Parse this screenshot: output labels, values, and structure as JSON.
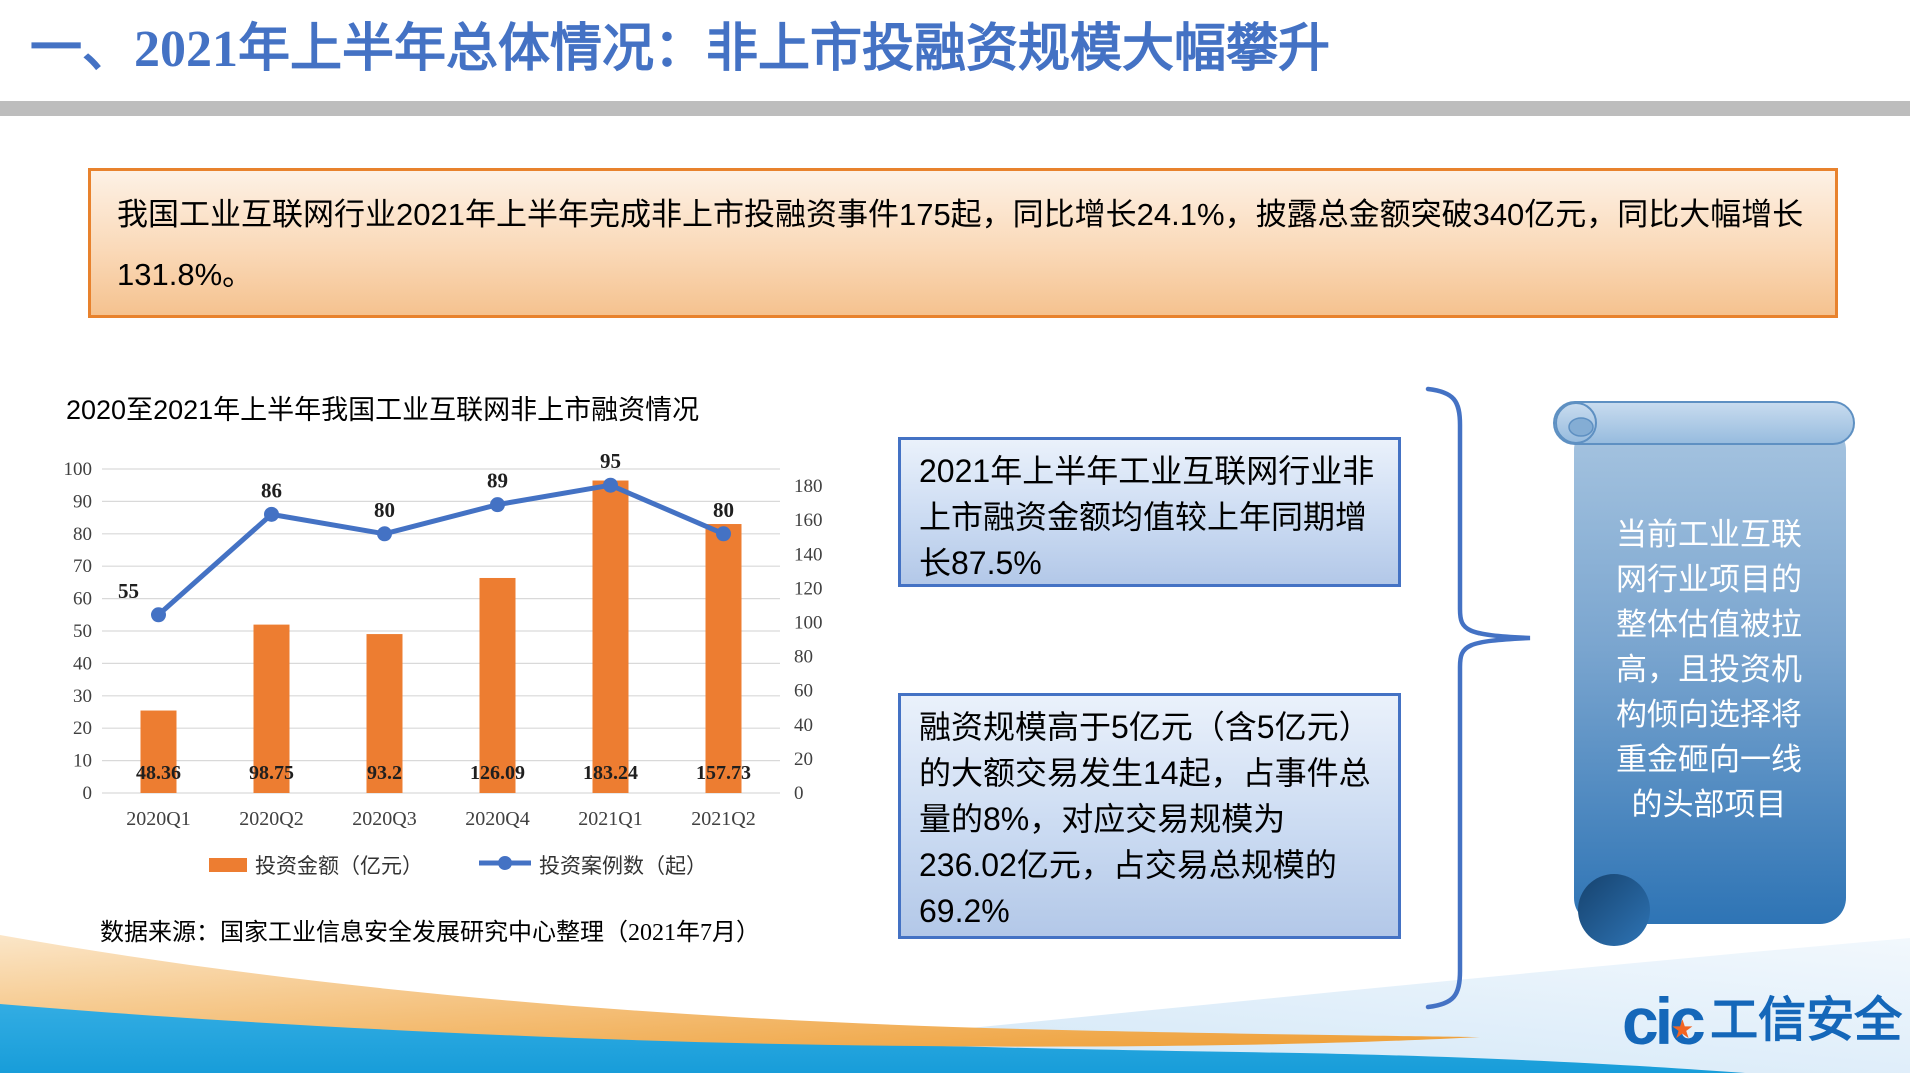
{
  "slide": {
    "title": {
      "prefix": "一、",
      "year": "2021",
      "rest": "年上半年总体情况：非上市投融资规模大幅攀升"
    },
    "summary_box": "我国工业互联网行业2021年上半年完成非上市投融资事件175起，同比增长24.1%，披露总金额突破340亿元，同比大幅增长131.8%。",
    "callout_1": "2021年上半年工业互联网行业非上市融资金额均值较上年同期增长87.5%",
    "callout_2": "融资规模高于5亿元（含5亿元）的大额交易发生14起，占事件总量的8%，对应交易规模为236.02亿元，占交易总规模的69.2%",
    "scroll_note": "当前工业互联\n网行业项目的\n整体估值被拉\n高，且投资机\n构倾向选择将\n重金砸向一线\n的头部项目",
    "source_note": "数据来源：国家工业信息安全发展研究中心整理（2021年7月）",
    "logo": {
      "mark": "cic",
      "star": "★",
      "text": "工信安全"
    }
  },
  "chart_data": {
    "type": "bar",
    "subtype": "combo-bar-line",
    "title": "2020至2021年上半年我国工业互联网非上市融资情况",
    "categories": [
      "2020Q1",
      "2020Q2",
      "2020Q3",
      "2020Q4",
      "2021Q1",
      "2021Q2"
    ],
    "series": [
      {
        "name": "投资金额（亿元）",
        "type": "bar",
        "axis": "right",
        "color": "#ED7D31",
        "values": [
          48.36,
          98.75,
          93.2,
          126.09,
          183.24,
          157.73
        ]
      },
      {
        "name": "投资案例数（起）",
        "type": "line",
        "axis": "left",
        "color": "#4472C4",
        "values": [
          55,
          86,
          80,
          89,
          95,
          80
        ]
      }
    ],
    "left_axis": {
      "min": 0,
      "max": 100,
      "step": 10
    },
    "right_axis": {
      "min": 0,
      "max": 190,
      "step": 20,
      "last_label": 180
    },
    "grid": true,
    "gridline_color": "#D9D9D9",
    "legend_position": "bottom"
  },
  "colors": {
    "title_blue": "#4472C4",
    "bar_orange": "#ED7D31",
    "line_blue": "#4472C4",
    "summary_border": "#E8822D",
    "callout_border": "#4472C4",
    "scroll_dark_blue": "#2E74B5",
    "wave_cyan": "#29ABE2",
    "wave_orange": "#F0A23C",
    "divider_gray": "#BDBDBD",
    "logo_blue": "#1467B9",
    "logo_star_orange": "#F26522"
  }
}
